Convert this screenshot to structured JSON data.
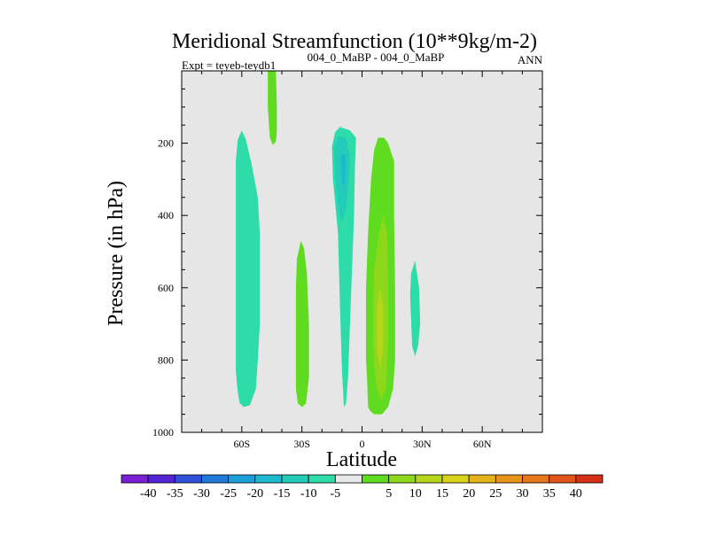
{
  "chart_data": {
    "type": "contour",
    "title": "Meridional Streamfunction (10**9kg/m-2)",
    "subtitle_left": "Expt = teyeb-teydb1",
    "subtitle_center": "004_0_MaBP - 004_0_MaBP",
    "subtitle_right": "ANN",
    "xlabel": "Latitude",
    "ylabel": "Pressure (in hPa)",
    "xlim": [
      -90,
      90
    ],
    "ylim": [
      1000,
      0
    ],
    "x_ticks": [
      {
        "value": -60,
        "label": "60S"
      },
      {
        "value": -30,
        "label": "30S"
      },
      {
        "value": 0,
        "label": "0"
      },
      {
        "value": 30,
        "label": "30N"
      },
      {
        "value": 60,
        "label": "60N"
      }
    ],
    "y_ticks": [
      {
        "value": 200,
        "label": "200"
      },
      {
        "value": 400,
        "label": "400"
      },
      {
        "value": 600,
        "label": "600"
      },
      {
        "value": 800,
        "label": "800"
      },
      {
        "value": 1000,
        "label": "1000"
      }
    ],
    "background_color": "#e6e6e6",
    "colorbar": {
      "colors": [
        "#7b1fd6",
        "#5423d6",
        "#2f4fd9",
        "#1f7ad9",
        "#1c9fd8",
        "#1cb9cf",
        "#22ccb9",
        "#2edcaa",
        "#e8e8e8",
        "#5fdc20",
        "#8ed81c",
        "#b7d61a",
        "#d8d21a",
        "#e5b21a",
        "#e69419",
        "#e6761a",
        "#e2531a",
        "#d62f17"
      ],
      "labels": [
        "-40",
        "-35",
        "-30",
        "-25",
        "-20",
        "-15",
        "-10",
        "-5",
        "5",
        "10",
        "15",
        "20",
        "25",
        "30",
        "35",
        "40"
      ]
    },
    "regions": [
      {
        "name": "streamfunction-cell-60s",
        "level": "-10 to -5",
        "color": "#2edcaa",
        "points": [
          [
            -63,
            1000
          ],
          [
            -63,
            920
          ],
          [
            -63,
            830
          ],
          [
            -63,
            700
          ],
          [
            -63,
            600
          ],
          [
            -63,
            400
          ],
          [
            -63,
            250
          ],
          [
            -62,
            190
          ],
          [
            -60,
            165
          ],
          [
            -58,
            190
          ],
          [
            -55,
            260
          ],
          [
            -52,
            350
          ],
          [
            -51,
            450
          ],
          [
            -51,
            600
          ],
          [
            -51,
            700
          ],
          [
            -52,
            800
          ],
          [
            -53,
            880
          ],
          [
            -56,
            925
          ],
          [
            -59,
            930
          ],
          [
            -61,
            920
          ],
          [
            -62,
            890
          ],
          [
            -63,
            830
          ]
        ]
      },
      {
        "name": "streamfunction-cell-45s-upper",
        "level": "5 to 10",
        "color": "#5fdc20",
        "points": [
          [
            -47,
            0
          ],
          [
            -45,
            0
          ],
          [
            -43,
            0
          ],
          [
            -42.5,
            100
          ],
          [
            -42.5,
            170
          ],
          [
            -43,
            195
          ],
          [
            -44.5,
            205
          ],
          [
            -46,
            185
          ],
          [
            -47,
            100
          ]
        ]
      },
      {
        "name": "streamfunction-cell-30s",
        "level": "5 to 10",
        "color": "#5fdc20",
        "points": [
          [
            -33,
            800
          ],
          [
            -33,
            600
          ],
          [
            -32.5,
            520
          ],
          [
            -30.5,
            470
          ],
          [
            -29,
            490
          ],
          [
            -27.5,
            560
          ],
          [
            -26.5,
            700
          ],
          [
            -26.5,
            850
          ],
          [
            -28,
            920
          ],
          [
            -30,
            930
          ],
          [
            -32,
            920
          ],
          [
            -33,
            880
          ]
        ]
      },
      {
        "name": "streamfunction-cell-10s",
        "level": "-10 to -5",
        "color": "#2edcaa",
        "points": [
          [
            -15,
            210
          ],
          [
            -13.5,
            170
          ],
          [
            -11,
            155
          ],
          [
            -6,
            165
          ],
          [
            -3,
            185
          ],
          [
            -3.5,
            260
          ],
          [
            -4,
            400
          ],
          [
            -5,
            550
          ],
          [
            -6,
            700
          ],
          [
            -7,
            850
          ],
          [
            -8,
            920
          ],
          [
            -9,
            930
          ],
          [
            -10,
            830
          ],
          [
            -11,
            650
          ],
          [
            -12,
            450
          ],
          [
            -14.5,
            300
          ]
        ]
      },
      {
        "name": "streamfunction-core-10s",
        "level": "-15 to -10",
        "color": "#22ccb9",
        "points": [
          [
            -14,
            220
          ],
          [
            -12,
            180
          ],
          [
            -8,
            185
          ],
          [
            -6,
            240
          ],
          [
            -6.5,
            300
          ],
          [
            -8,
            380
          ],
          [
            -10,
            420
          ],
          [
            -12,
            380
          ],
          [
            -13.5,
            280
          ]
        ]
      },
      {
        "name": "streamfunction-core-10s-inner",
        "level": "-20 to -15",
        "color": "#1cb9cf",
        "points": [
          [
            -10.5,
            235
          ],
          [
            -8.5,
            230
          ],
          [
            -8,
            280
          ],
          [
            -9,
            320
          ],
          [
            -10,
            310
          ]
        ]
      },
      {
        "name": "streamfunction-cell-10n",
        "level": "5 to 10",
        "color": "#5fdc20",
        "points": [
          [
            3,
            930
          ],
          [
            2.5,
            850
          ],
          [
            2,
            800
          ],
          [
            2,
            600
          ],
          [
            3,
            450
          ],
          [
            4.5,
            300
          ],
          [
            6,
            220
          ],
          [
            8,
            185
          ],
          [
            11,
            185
          ],
          [
            13,
            200
          ],
          [
            16,
            250
          ],
          [
            16,
            400
          ],
          [
            16.5,
            600
          ],
          [
            16.5,
            800
          ],
          [
            15.5,
            880
          ],
          [
            13,
            930
          ],
          [
            10,
            950
          ],
          [
            6,
            950
          ],
          [
            4,
            940
          ]
        ]
      },
      {
        "name": "streamfunction-core-10n",
        "level": "10 to 15",
        "color": "#8ed81c",
        "points": [
          [
            6,
            820
          ],
          [
            5.5,
            700
          ],
          [
            6,
            550
          ],
          [
            8.5,
            450
          ],
          [
            10.5,
            400
          ],
          [
            12.5,
            450
          ],
          [
            13,
            600
          ],
          [
            13,
            750
          ],
          [
            12,
            880
          ],
          [
            9.5,
            910
          ],
          [
            7.5,
            880
          ]
        ]
      },
      {
        "name": "streamfunction-core-10n-inner",
        "level": "15 to 20",
        "color": "#b7d61a",
        "points": [
          [
            7.5,
            780
          ],
          [
            7.5,
            650
          ],
          [
            9,
            600
          ],
          [
            10.5,
            650
          ],
          [
            10.5,
            770
          ],
          [
            9,
            820
          ]
        ]
      },
      {
        "name": "streamfunction-cell-25n",
        "level": "-10 to -5",
        "color": "#2edcaa",
        "points": [
          [
            24,
            620
          ],
          [
            24.5,
            560
          ],
          [
            26.5,
            525
          ],
          [
            28.5,
            600
          ],
          [
            29,
            700
          ],
          [
            28,
            760
          ],
          [
            26.5,
            790
          ],
          [
            25,
            760
          ]
        ]
      }
    ]
  }
}
